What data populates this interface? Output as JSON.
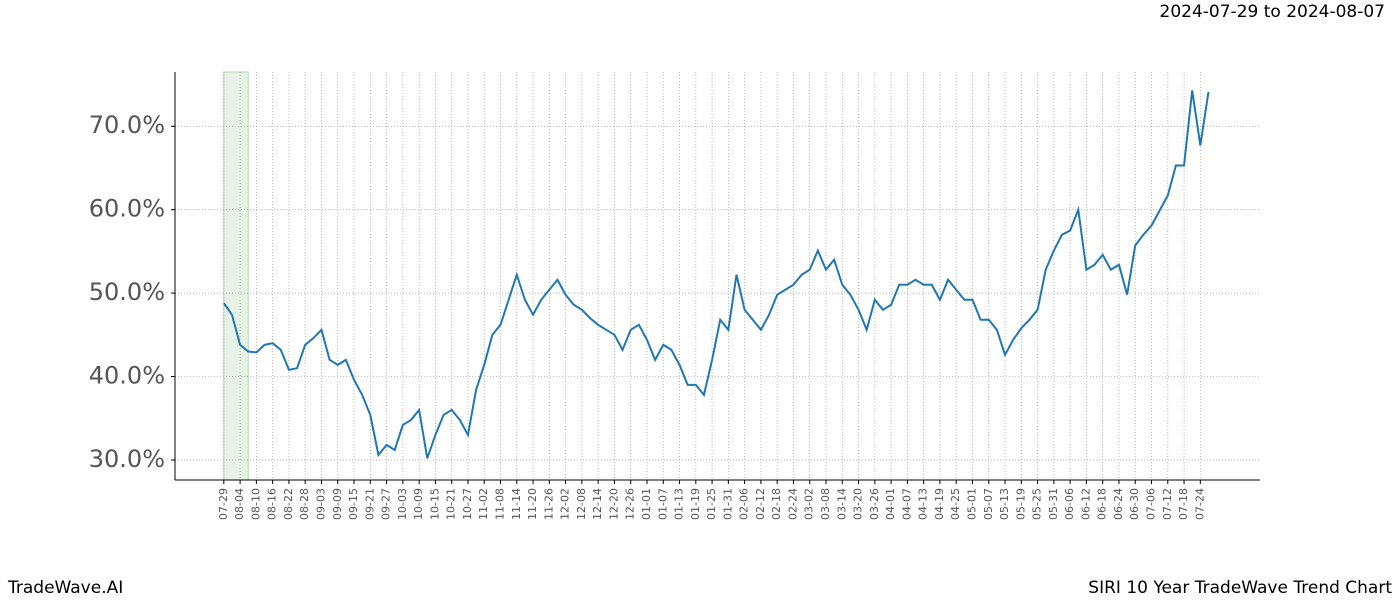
{
  "chart_data": {
    "type": "line",
    "title": "SIRI 10 Year TradeWave Trend Chart",
    "subtitle": "2024-07-29 to 2024-08-07",
    "brand": "TradeWave.AI",
    "x": [
      0,
      3,
      6,
      9,
      12,
      15,
      18,
      21,
      24,
      27,
      30,
      33,
      36,
      39,
      42,
      45,
      48,
      51,
      54,
      57,
      60,
      63,
      66,
      69,
      72,
      75,
      78,
      81,
      84,
      87,
      90,
      93,
      96,
      99,
      102,
      105,
      108,
      111,
      114,
      117,
      120,
      123,
      126,
      129,
      132,
      135,
      138,
      141,
      144,
      147,
      150,
      153,
      156,
      159,
      162,
      165,
      168,
      171,
      174,
      177,
      180,
      183,
      186,
      189,
      192,
      195,
      198,
      201,
      204,
      207,
      210,
      213,
      216,
      219,
      222,
      225,
      228,
      231,
      234,
      237,
      240,
      243,
      246,
      249,
      252,
      255,
      258,
      261,
      264,
      267,
      270,
      273,
      276,
      279,
      282,
      285,
      288,
      291,
      294,
      297,
      300,
      303,
      306,
      309,
      312,
      315,
      318,
      321,
      324,
      327,
      330,
      333,
      336,
      339,
      342,
      345,
      348,
      351,
      354,
      357,
      360,
      363
    ],
    "series": [
      {
        "color": "#1f77b4",
        "values": [
          48.8,
          47.4,
          43.8,
          43,
          42.9,
          43.8,
          44,
          43.2,
          40.8,
          41,
          43.8,
          44.6,
          45.6,
          42,
          41.4,
          42,
          39.6,
          37.8,
          35.4,
          30.6,
          31.8,
          31.2,
          34.2,
          34.8,
          36,
          30.2,
          33,
          35.4,
          36,
          34.8,
          33,
          38.4,
          41.4,
          45,
          46.2,
          49.2,
          52.2,
          49.2,
          47.4,
          49.2,
          50.4,
          51.6,
          49.8,
          48.6,
          48,
          47,
          46.2,
          45.6,
          45,
          43.2,
          45.6,
          46.2,
          44.4,
          42,
          43.8,
          43.2,
          41.4,
          39,
          39,
          37.8,
          42,
          46.8,
          45.6,
          52.2,
          48,
          46.8,
          45.6,
          47.4,
          49.8,
          50.4,
          51,
          52.2,
          52.8,
          55.1,
          52.8,
          54,
          51,
          49.8,
          48,
          45.6,
          49.2,
          48,
          48.6,
          51,
          51,
          51.6,
          51,
          51,
          49.2,
          51.6,
          50.4,
          49.2,
          49.2,
          46.8,
          46.8,
          45.6,
          42.6,
          44.4,
          45.8,
          46.8,
          48,
          52.8,
          55.1,
          57,
          57.5,
          60,
          52.8,
          53.4,
          54.6,
          52.8,
          53.4,
          49.8,
          55.7,
          57,
          58.1,
          59.9,
          61.7,
          65.3,
          65.3,
          74.3,
          67.7,
          74.1
        ]
      }
    ],
    "highlight": {
      "range": [
        0,
        9
      ],
      "color": "#e6f2e6"
    },
    "xlim": [
      -18,
      382
    ],
    "xticks": [
      {
        "value": 0,
        "label": "07-29"
      },
      {
        "value": 6,
        "label": "08-04"
      },
      {
        "value": 12,
        "label": "08-10"
      },
      {
        "value": 18,
        "label": "08-16"
      },
      {
        "value": 24,
        "label": "08-22"
      },
      {
        "value": 30,
        "label": "08-28"
      },
      {
        "value": 36,
        "label": "09-03"
      },
      {
        "value": 42,
        "label": "09-09"
      },
      {
        "value": 48,
        "label": "09-15"
      },
      {
        "value": 54,
        "label": "09-21"
      },
      {
        "value": 60,
        "label": "09-27"
      },
      {
        "value": 66,
        "label": "10-03"
      },
      {
        "value": 72,
        "label": "10-09"
      },
      {
        "value": 78,
        "label": "10-15"
      },
      {
        "value": 84,
        "label": "10-21"
      },
      {
        "value": 90,
        "label": "10-27"
      },
      {
        "value": 96,
        "label": "11-02"
      },
      {
        "value": 102,
        "label": "11-08"
      },
      {
        "value": 108,
        "label": "11-14"
      },
      {
        "value": 114,
        "label": "11-20"
      },
      {
        "value": 120,
        "label": "11-26"
      },
      {
        "value": 126,
        "label": "12-02"
      },
      {
        "value": 132,
        "label": "12-08"
      },
      {
        "value": 138,
        "label": "12-14"
      },
      {
        "value": 144,
        "label": "12-20"
      },
      {
        "value": 150,
        "label": "12-26"
      },
      {
        "value": 156,
        "label": "01-01"
      },
      {
        "value": 162,
        "label": "01-07"
      },
      {
        "value": 168,
        "label": "01-13"
      },
      {
        "value": 174,
        "label": "01-19"
      },
      {
        "value": 180,
        "label": "01-25"
      },
      {
        "value": 186,
        "label": "01-31"
      },
      {
        "value": 192,
        "label": "02-06"
      },
      {
        "value": 198,
        "label": "02-12"
      },
      {
        "value": 204,
        "label": "02-18"
      },
      {
        "value": 210,
        "label": "02-24"
      },
      {
        "value": 216,
        "label": "03-02"
      },
      {
        "value": 222,
        "label": "03-08"
      },
      {
        "value": 228,
        "label": "03-14"
      },
      {
        "value": 234,
        "label": "03-20"
      },
      {
        "value": 240,
        "label": "03-26"
      },
      {
        "value": 246,
        "label": "04-01"
      },
      {
        "value": 252,
        "label": "04-07"
      },
      {
        "value": 258,
        "label": "04-13"
      },
      {
        "value": 264,
        "label": "04-19"
      },
      {
        "value": 270,
        "label": "04-25"
      },
      {
        "value": 276,
        "label": "05-01"
      },
      {
        "value": 282,
        "label": "05-07"
      },
      {
        "value": 288,
        "label": "05-13"
      },
      {
        "value": 294,
        "label": "05-19"
      },
      {
        "value": 300,
        "label": "05-25"
      },
      {
        "value": 306,
        "label": "05-31"
      },
      {
        "value": 312,
        "label": "06-06"
      },
      {
        "value": 318,
        "label": "06-12"
      },
      {
        "value": 324,
        "label": "06-18"
      },
      {
        "value": 330,
        "label": "06-24"
      },
      {
        "value": 336,
        "label": "06-30"
      },
      {
        "value": 342,
        "label": "07-06"
      },
      {
        "value": 348,
        "label": "07-12"
      },
      {
        "value": 354,
        "label": "07-18"
      },
      {
        "value": 360,
        "label": "07-24"
      }
    ],
    "ylim": [
      27.6,
      76.5
    ],
    "yticks": [
      {
        "value": 30,
        "label": "30.0%"
      },
      {
        "value": 40,
        "label": "40.0%"
      },
      {
        "value": 50,
        "label": "50.0%"
      },
      {
        "value": 60,
        "label": "60.0%"
      },
      {
        "value": 70,
        "label": "70.0%"
      }
    ],
    "grid": true
  }
}
